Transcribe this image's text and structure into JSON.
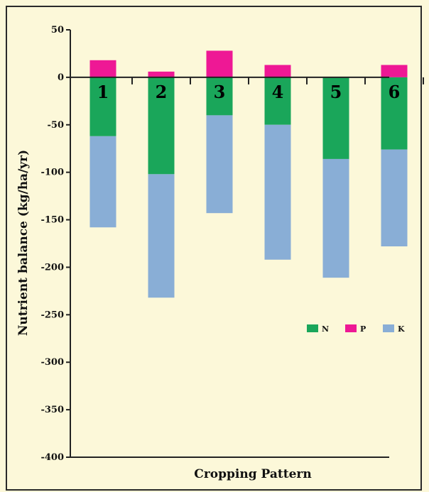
{
  "chart_data": {
    "type": "bar",
    "stacked": true,
    "title": "",
    "xlabel": "Cropping Pattern",
    "ylabel": "Nutrient balance (kg/ha/yr)",
    "ylim": [
      -400,
      50
    ],
    "yticks": [
      50,
      0,
      -50,
      -100,
      -150,
      -200,
      -250,
      -300,
      -350,
      -400
    ],
    "categories": [
      "1",
      "2",
      "3",
      "4",
      "5",
      "6"
    ],
    "series": [
      {
        "name": "N",
        "color": "#1aa65a",
        "values": [
          -62,
          -102,
          -40,
          -50,
          -86,
          -76
        ]
      },
      {
        "name": "P",
        "color": "#ee1895",
        "values": [
          18,
          6,
          28,
          13,
          0,
          13
        ]
      },
      {
        "name": "K",
        "color": "#89aed6",
        "values": [
          -96,
          -130,
          -103,
          -142,
          -125,
          -102
        ]
      }
    ],
    "grid": false,
    "legend": "right, inside plot"
  }
}
